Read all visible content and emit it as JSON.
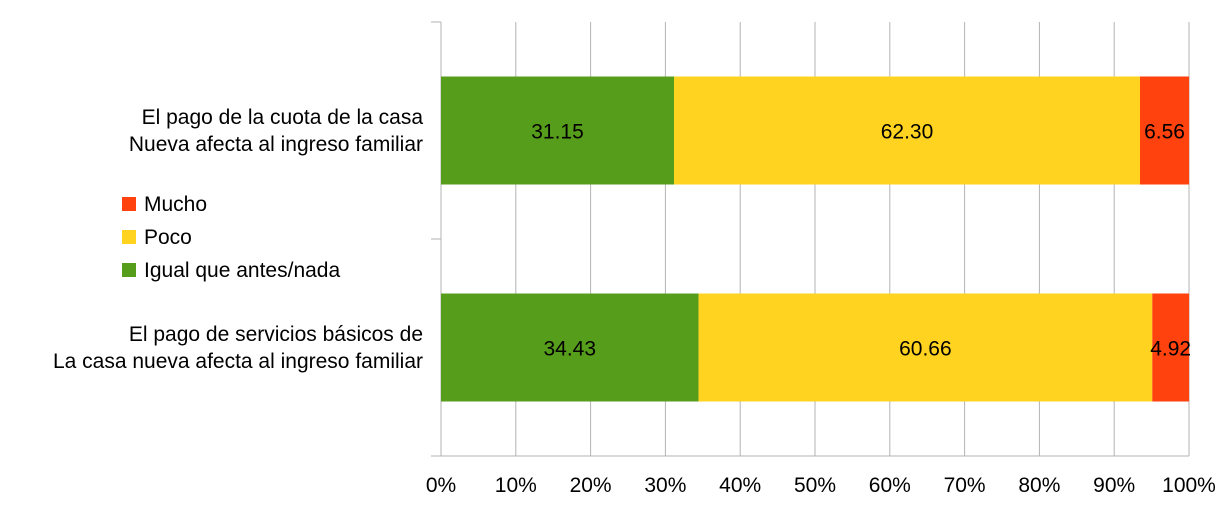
{
  "chart_data": {
    "type": "bar",
    "orientation": "horizontal",
    "stacked": "percent",
    "title": "",
    "xlabel": "",
    "ylabel": "",
    "xlim": [
      0,
      100
    ],
    "x_ticks": [
      "0%",
      "10%",
      "20%",
      "30%",
      "40%",
      "50%",
      "60%",
      "70%",
      "80%",
      "90%",
      "100%"
    ],
    "grid": true,
    "legend_position": "left",
    "categories": [
      {
        "lines": [
          "El pago de la cuota de la casa",
          "Nueva afecta al ingreso familiar"
        ]
      },
      {
        "lines": [
          "El pago de servicios básicos de",
          "La casa nueva afecta al ingreso familiar"
        ]
      }
    ],
    "series": [
      {
        "name": "Igual que antes/nada",
        "color": "#579D1C",
        "values": [
          31.15,
          34.43
        ],
        "labels": [
          "31.15",
          "34.43"
        ]
      },
      {
        "name": "Poco",
        "color": "#FFD320",
        "values": [
          62.3,
          60.66
        ],
        "labels": [
          "62.30",
          "60.66"
        ]
      },
      {
        "name": "Mucho",
        "color": "#FF420E",
        "values": [
          6.56,
          4.92
        ],
        "labels": [
          "6.56",
          "4.92"
        ]
      }
    ],
    "legend_order": [
      "Mucho",
      "Poco",
      "Igual que antes/nada"
    ]
  }
}
